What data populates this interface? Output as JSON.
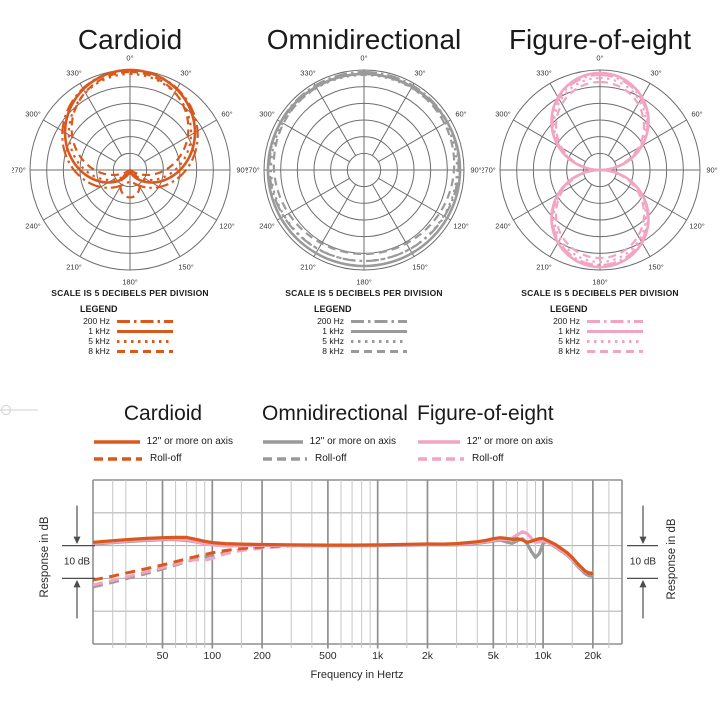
{
  "colors": {
    "cardioid": "#d9581e",
    "omnidirectional": "#9a9a9a",
    "figure8": "#f2a4c3",
    "polar_grid": "#6e6e6e",
    "grid_major": "#8f8f8f",
    "grid_minor": "#c6c6c6",
    "grid_horizontal": "#b5b5b5",
    "annotation": "#4d4d4d",
    "crop_mark": "#d0d0d0",
    "text": "#1a1a1a"
  },
  "polar": {
    "scale_note": "SCALE IS 5 DECIBELS PER DIVISION",
    "legend_title": "LEGEND",
    "angle_labels": [
      "0°",
      "30°",
      "60°",
      "90°",
      "120°",
      "150°",
      "180°",
      "210°",
      "240°",
      "270°",
      "300°",
      "330°"
    ]
  },
  "response": {
    "db_label": "10 dB",
    "groups": [
      {
        "title": "Cardioid",
        "color_key": "cardioid",
        "solid_label": "12\" or more on axis",
        "dashed_label": "Roll-off"
      },
      {
        "title": "Omnidirectional",
        "color_key": "omnidirectional",
        "solid_label": "12\" or more on axis",
        "dashed_label": "Roll-off"
      },
      {
        "title": "Figure-of-eight",
        "color_key": "figure8",
        "solid_label": "12\" or more on axis",
        "dashed_label": "Roll-off"
      }
    ]
  },
  "chart_data": [
    {
      "id": "polar-cardioid",
      "type": "polar",
      "title": "Cardioid",
      "color_key": "cardioid",
      "db_per_division": 5,
      "rings": 6,
      "legend_position": "below",
      "series": [
        {
          "label": "200 Hz",
          "dash": "13 4 2.5 4",
          "a": 0.56,
          "b": 0.44,
          "scale": 1.0
        },
        {
          "label": "1 kHz",
          "dash": "",
          "a": 0.5,
          "b": 0.5,
          "scale": 1.0
        },
        {
          "label": "5 kHz",
          "dash": "2.5 4.5",
          "a": 0.47,
          "b": 0.53,
          "scale": 0.96
        },
        {
          "label": "8 kHz",
          "dash": "8 5",
          "a": 0.36,
          "b": 0.64,
          "scale": 0.98
        }
      ]
    },
    {
      "id": "polar-omnidirectional",
      "type": "polar",
      "title": "Omnidirectional",
      "color_key": "omnidirectional",
      "db_per_division": 5,
      "rings": 6,
      "legend_position": "below",
      "series": [
        {
          "label": "200 Hz",
          "dash": "13 4 2.5 4",
          "a": 0.945,
          "b": 0.035,
          "scale": 1.0
        },
        {
          "label": "1 kHz",
          "dash": "",
          "a": 0.96,
          "b": 0.0,
          "scale": 1.0
        },
        {
          "label": "5 kHz",
          "dash": "2.5 4.5",
          "a": 0.93,
          "b": 0.02,
          "scale": 1.0
        },
        {
          "label": "8 kHz",
          "dash": "8 5",
          "a": 0.9,
          "b": 0.06,
          "scale": 1.0
        }
      ]
    },
    {
      "id": "polar-figure-of-eight",
      "type": "polar",
      "title": "Figure-of-eight",
      "color_key": "figure8",
      "db_per_division": 5,
      "rings": 6,
      "legend_position": "below",
      "series": [
        {
          "label": "200 Hz",
          "dash": "13 4 2.5 4",
          "a": 0.0,
          "b": 0.95,
          "scale": 1.0
        },
        {
          "label": "1 kHz",
          "dash": "",
          "a": 0.0,
          "b": 0.97,
          "scale": 1.0
        },
        {
          "label": "5 kHz",
          "dash": "2.5 4.5",
          "a": 0.0,
          "b": 0.92,
          "scale": 1.0
        },
        {
          "label": "8 kHz",
          "dash": "8 5",
          "a": 0.0,
          "b": 0.88,
          "scale": 1.0
        }
      ]
    },
    {
      "id": "frequency-response",
      "type": "line",
      "xscale": "log",
      "grid": true,
      "xlabel": "Frequency in Hertz",
      "ylabel": "Response in dB",
      "xlim": [
        19,
        30000
      ],
      "ylim": [
        -30,
        20
      ],
      "db_per_division": 10,
      "y_gridlines_db": [
        20,
        10,
        0,
        -10,
        -20,
        -30
      ],
      "x_ticks": [
        {
          "label": "50",
          "value": 50
        },
        {
          "label": "100",
          "value": 100
        },
        {
          "label": "200",
          "value": 200
        },
        {
          "label": "500",
          "value": 500
        },
        {
          "label": "1k",
          "value": 1000
        },
        {
          "label": "2k",
          "value": 2000
        },
        {
          "label": "5k",
          "value": 5000
        },
        {
          "label": "10k",
          "value": 10000
        },
        {
          "label": "20k",
          "value": 20000
        }
      ],
      "series": [
        {
          "name": "Omnidirectional Roll-off",
          "color_key": "omnidirectional",
          "style": "dashed",
          "points": [
            [
              19,
              -12.6
            ],
            [
              25,
              -11.2
            ],
            [
              30,
              -10.1
            ],
            [
              40,
              -8.5
            ],
            [
              50,
              -7.1
            ],
            [
              60,
              -5.9
            ],
            [
              70,
              -4.9
            ],
            [
              80,
              -4.1
            ],
            [
              90,
              -3.5
            ],
            [
              100,
              -2.9
            ],
            [
              120,
              -2.1
            ],
            [
              150,
              -1.3
            ],
            [
              200,
              -0.6
            ],
            [
              250,
              -0.3
            ],
            [
              300,
              -0.1
            ],
            [
              400,
              0
            ],
            [
              500,
              0
            ]
          ]
        },
        {
          "name": "Figure-of-eight Roll-off",
          "color_key": "figure8",
          "style": "dashed",
          "points": [
            [
              19,
              -12.0
            ],
            [
              25,
              -10.6
            ],
            [
              30,
              -9.6
            ],
            [
              40,
              -8.0
            ],
            [
              50,
              -6.7
            ],
            [
              60,
              -5.6
            ],
            [
              70,
              -4.7
            ],
            [
              80,
              -4.3
            ],
            [
              90,
              -4.5
            ],
            [
              100,
              -3.9
            ],
            [
              120,
              -2.5
            ],
            [
              150,
              -1.5
            ],
            [
              200,
              -0.8
            ],
            [
              250,
              -0.35
            ],
            [
              300,
              -0.1
            ],
            [
              400,
              0
            ],
            [
              500,
              0
            ]
          ]
        },
        {
          "name": "Cardioid Roll-off",
          "color_key": "cardioid",
          "style": "dashed",
          "points": [
            [
              19,
              -10.5
            ],
            [
              25,
              -9.3
            ],
            [
              30,
              -8.4
            ],
            [
              40,
              -7.0
            ],
            [
              50,
              -5.9
            ],
            [
              60,
              -4.9
            ],
            [
              70,
              -4.0
            ],
            [
              80,
              -3.3
            ],
            [
              90,
              -2.7
            ],
            [
              100,
              -2.2
            ],
            [
              120,
              -1.5
            ],
            [
              150,
              -0.9
            ],
            [
              200,
              -0.4
            ],
            [
              250,
              -0.15
            ],
            [
              300,
              0.05
            ],
            [
              400,
              0.1
            ],
            [
              500,
              0.15
            ]
          ]
        },
        {
          "name": "Omnidirectional 12\" or more on axis",
          "color_key": "omnidirectional",
          "style": "solid",
          "points": [
            [
              19,
              0.5
            ],
            [
              25,
              0.9
            ],
            [
              30,
              1.2
            ],
            [
              40,
              1.6
            ],
            [
              50,
              1.8
            ],
            [
              60,
              1.8
            ],
            [
              70,
              1.6
            ],
            [
              80,
              1.1
            ],
            [
              90,
              0.7
            ],
            [
              100,
              0.4
            ],
            [
              120,
              0.25
            ],
            [
              150,
              0.15
            ],
            [
              200,
              0.1
            ],
            [
              300,
              0.05
            ],
            [
              500,
              0
            ],
            [
              1000,
              0
            ],
            [
              1500,
              0.1
            ],
            [
              2000,
              0.2
            ],
            [
              2500,
              0.2
            ],
            [
              3000,
              0.25
            ],
            [
              3500,
              0.4
            ],
            [
              4000,
              0.7
            ],
            [
              4500,
              1.0
            ],
            [
              5000,
              1.4
            ],
            [
              5500,
              1.7
            ],
            [
              6000,
              1.1
            ],
            [
              6500,
              0.7
            ],
            [
              7000,
              1.5
            ],
            [
              7500,
              2.1
            ],
            [
              8000,
              0.6
            ],
            [
              8500,
              -1.8
            ],
            [
              9000,
              -3.6
            ],
            [
              9500,
              -2.4
            ],
            [
              10000,
              0.6
            ],
            [
              10500,
              1.3
            ],
            [
              11000,
              0.6
            ],
            [
              12000,
              -0.6
            ],
            [
              13000,
              -1.8
            ],
            [
              14000,
              -3.0
            ],
            [
              15000,
              -4.4
            ],
            [
              16000,
              -6.0
            ],
            [
              17000,
              -7.4
            ],
            [
              18000,
              -8.6
            ],
            [
              19000,
              -9.2
            ],
            [
              20000,
              -9.3
            ]
          ]
        },
        {
          "name": "Figure-of-eight 12\" or more on axis",
          "color_key": "figure8",
          "style": "solid",
          "points": [
            [
              19,
              0.7
            ],
            [
              25,
              1.1
            ],
            [
              30,
              1.4
            ],
            [
              40,
              1.8
            ],
            [
              50,
              2.0
            ],
            [
              60,
              2.0
            ],
            [
              70,
              1.8
            ],
            [
              80,
              1.1
            ],
            [
              90,
              0.5
            ],
            [
              100,
              0.2
            ],
            [
              120,
              -0.1
            ],
            [
              150,
              0
            ],
            [
              200,
              0.05
            ],
            [
              300,
              0
            ],
            [
              500,
              0
            ],
            [
              1000,
              0.1
            ],
            [
              1500,
              0.2
            ],
            [
              2000,
              0.3
            ],
            [
              2500,
              0.3
            ],
            [
              3000,
              0.4
            ],
            [
              3500,
              0.6
            ],
            [
              4000,
              0.9
            ],
            [
              4500,
              1.2
            ],
            [
              5000,
              1.6
            ],
            [
              5500,
              2.0
            ],
            [
              6000,
              1.8
            ],
            [
              6500,
              2.3
            ],
            [
              7000,
              3.3
            ],
            [
              7500,
              4.2
            ],
            [
              8000,
              3.7
            ],
            [
              8500,
              2.2
            ],
            [
              9000,
              1.0
            ],
            [
              9500,
              1.1
            ],
            [
              10000,
              1.5
            ],
            [
              11000,
              0.7
            ],
            [
              12000,
              -0.4
            ],
            [
              13000,
              -1.6
            ],
            [
              14000,
              -2.8
            ],
            [
              15000,
              -4.2
            ],
            [
              16000,
              -5.6
            ],
            [
              17000,
              -7.0
            ],
            [
              18000,
              -8.0
            ],
            [
              19000,
              -8.3
            ],
            [
              20000,
              -8.2
            ]
          ]
        },
        {
          "name": "Cardioid 12\" or more on axis",
          "color_key": "cardioid",
          "style": "solid",
          "points": [
            [
              19,
              1.0
            ],
            [
              25,
              1.5
            ],
            [
              30,
              1.8
            ],
            [
              40,
              2.2
            ],
            [
              50,
              2.4
            ],
            [
              60,
              2.5
            ],
            [
              70,
              2.5
            ],
            [
              80,
              1.9
            ],
            [
              90,
              1.3
            ],
            [
              100,
              0.9
            ],
            [
              120,
              0.6
            ],
            [
              150,
              0.45
            ],
            [
              200,
              0.35
            ],
            [
              300,
              0.25
            ],
            [
              500,
              0.15
            ],
            [
              700,
              0.15
            ],
            [
              1000,
              0.2
            ],
            [
              1500,
              0.4
            ],
            [
              2000,
              0.5
            ],
            [
              2500,
              0.45
            ],
            [
              3000,
              0.6
            ],
            [
              3500,
              0.9
            ],
            [
              4000,
              1.2
            ],
            [
              4500,
              1.6
            ],
            [
              5000,
              2.1
            ],
            [
              5500,
              2.4
            ],
            [
              6000,
              2.2
            ],
            [
              6500,
              1.9
            ],
            [
              7000,
              2.1
            ],
            [
              7500,
              1.7
            ],
            [
              8000,
              1.0
            ],
            [
              8500,
              1.3
            ],
            [
              9000,
              1.8
            ],
            [
              9500,
              2.1
            ],
            [
              10000,
              2.2
            ],
            [
              11000,
              1.2
            ],
            [
              12000,
              0.2
            ],
            [
              13000,
              -1.0
            ],
            [
              14000,
              -2.2
            ],
            [
              15000,
              -3.6
            ],
            [
              16000,
              -5.2
            ],
            [
              17000,
              -6.6
            ],
            [
              18000,
              -7.8
            ],
            [
              19000,
              -8.4
            ],
            [
              20000,
              -8.5
            ]
          ]
        }
      ]
    }
  ]
}
